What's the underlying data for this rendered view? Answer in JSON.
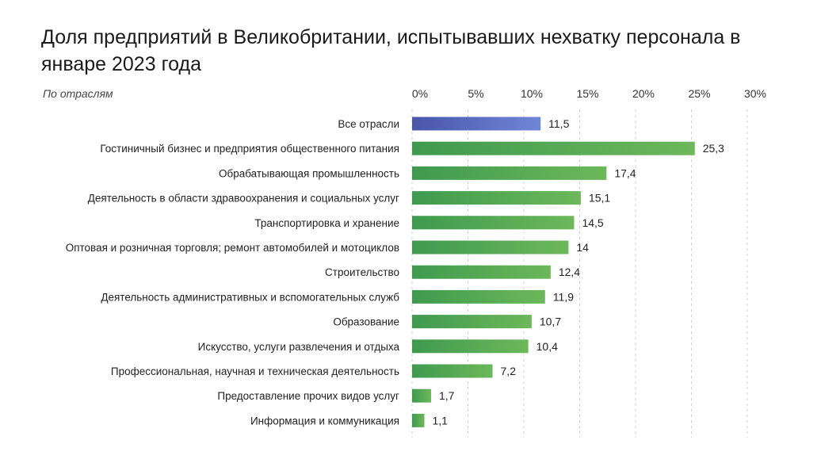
{
  "title": "Доля предприятий в Великобритании, испытывавших нехватку персонала в январе 2023 года",
  "subtitle": "По отраслям",
  "colors": {
    "highlight_start": "#4a55a8",
    "highlight_end": "#6f86d6",
    "bar_start": "#3f9a4f",
    "bar_end": "#6cb85a",
    "grid": "#d0d0d0"
  },
  "chart_data": {
    "type": "bar",
    "orientation": "horizontal",
    "title": "Доля предприятий в Великобритании, испытывавших нехватку персонала в январе 2023 года",
    "subtitle": "По отраслям",
    "xlim": [
      0,
      30
    ],
    "x_ticks": [
      0,
      5,
      10,
      15,
      20,
      25,
      30
    ],
    "x_tick_labels": [
      "0%",
      "5%",
      "10%",
      "15%",
      "20%",
      "25%",
      "30%"
    ],
    "grid": "vertical",
    "categories": [
      "Все отрасли",
      "Гостиничный бизнес и предприятия общественного питания",
      "Обрабатывающая промышленность",
      "Деятельность в области здравоохранения и социальных услуг",
      "Транспортировка и хранение",
      "Оптовая и розничная торговля; ремонт автомобилей и мотоциклов",
      "Строительство",
      "Деятельность административных и вспомогательных служб",
      "Образование",
      "Искусство, услуги развлечения и отдыха",
      "Профессиональная, научная и техническая деятельность",
      "Предоставление прочих видов услуг",
      "Информация и коммуникация"
    ],
    "values": [
      11.5,
      25.3,
      17.4,
      15.1,
      14.5,
      14,
      12.4,
      11.9,
      10.7,
      10.4,
      7.2,
      1.7,
      1.1
    ],
    "value_labels": [
      "11,5",
      "25,3",
      "17,4",
      "15,1",
      "14,5",
      "14",
      "12,4",
      "11,9",
      "10,7",
      "10,4",
      "7,2",
      "1,7",
      "1,1"
    ],
    "highlighted": [
      "Все отрасли"
    ]
  }
}
